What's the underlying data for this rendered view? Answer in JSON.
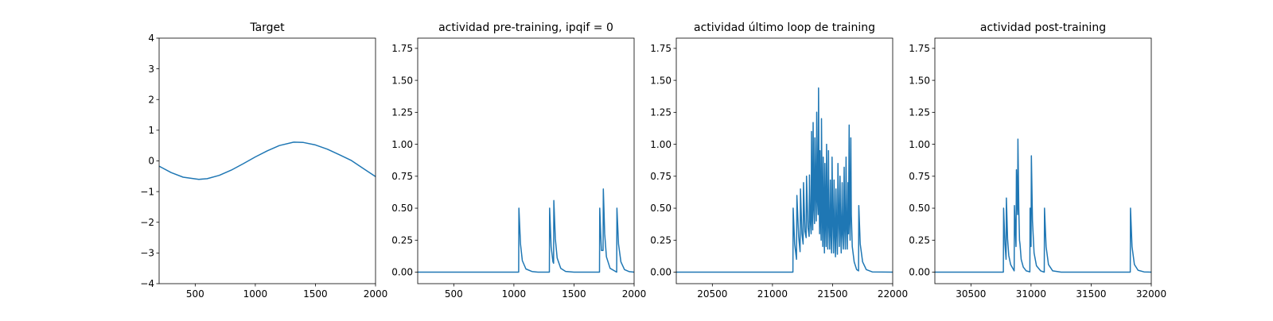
{
  "chart_data": [
    {
      "type": "line",
      "title": "Target",
      "xlabel": "",
      "ylabel": "",
      "xlim": [
        200,
        2000
      ],
      "ylim": [
        -4,
        4
      ],
      "xticks": [
        500,
        1000,
        1500,
        2000
      ],
      "xtick_labels": [
        "500",
        "1000",
        "1500",
        "2000"
      ],
      "yticks": [
        -4,
        -3,
        -2,
        -1,
        0,
        1,
        2,
        3,
        4
      ],
      "ytick_labels": [
        "−4",
        "−3",
        "−2",
        "−1",
        "0",
        "1",
        "2",
        "3",
        "4"
      ],
      "grid": false,
      "series": [
        {
          "color": "#1f77b4",
          "x": [
            200,
            300,
            400,
            530,
            600,
            700,
            800,
            900,
            1000,
            1100,
            1200,
            1320,
            1400,
            1500,
            1600,
            1700,
            1800,
            1900,
            2000
          ],
          "y": [
            -0.17,
            -0.38,
            -0.53,
            -0.6,
            -0.58,
            -0.47,
            -0.3,
            -0.09,
            0.13,
            0.33,
            0.5,
            0.61,
            0.6,
            0.52,
            0.38,
            0.2,
            0.01,
            -0.25,
            -0.51
          ]
        }
      ]
    },
    {
      "type": "line",
      "title": "actividad pre-training, ipqif = 0",
      "xlabel": "",
      "ylabel": "",
      "xlim": [
        200,
        2000
      ],
      "ylim": [
        -0.09,
        1.83
      ],
      "xticks": [
        500,
        1000,
        1500,
        2000
      ],
      "xtick_labels": [
        "500",
        "1000",
        "1500",
        "2000"
      ],
      "yticks": [
        0,
        0.25,
        0.5,
        0.75,
        1.0,
        1.25,
        1.5,
        1.75
      ],
      "ytick_labels": [
        "0.00",
        "0.25",
        "0.50",
        "0.75",
        "1.00",
        "1.25",
        "1.50",
        "1.75"
      ],
      "grid": false,
      "series": [
        {
          "color": "#1f77b4",
          "x": [
            200,
            1040,
            1042,
            1055,
            1070,
            1100,
            1150,
            1200,
            1295,
            1297,
            1310,
            1325,
            1330,
            1332,
            1345,
            1360,
            1390,
            1430,
            1500,
            1600,
            1712,
            1714,
            1722,
            1728,
            1742,
            1744,
            1755,
            1770,
            1800,
            1855,
            1857,
            1870,
            1890,
            1920,
            1960,
            2000
          ],
          "y": [
            0.0,
            0.0,
            0.5,
            0.22,
            0.09,
            0.025,
            0.005,
            0.0,
            0.0,
            0.5,
            0.2,
            0.08,
            0.07,
            0.56,
            0.26,
            0.11,
            0.03,
            0.006,
            0.0,
            0.0,
            0.0,
            0.5,
            0.3,
            0.17,
            0.17,
            0.65,
            0.3,
            0.12,
            0.03,
            0.0,
            0.5,
            0.22,
            0.08,
            0.02,
            0.004,
            0.0
          ]
        }
      ]
    },
    {
      "type": "line",
      "title": "actividad último loop de training",
      "xlabel": "",
      "ylabel": "",
      "xlim": [
        20200,
        22000
      ],
      "ylim": [
        -0.09,
        1.83
      ],
      "xticks": [
        20500,
        21000,
        21500,
        22000
      ],
      "xtick_labels": [
        "20500",
        "21000",
        "21500",
        "22000"
      ],
      "yticks": [
        0,
        0.25,
        0.5,
        0.75,
        1.0,
        1.25,
        1.5,
        1.75
      ],
      "ytick_labels": [
        "0.00",
        "0.25",
        "0.50",
        "0.75",
        "1.00",
        "1.25",
        "1.50",
        "1.75"
      ],
      "grid": false,
      "series": [
        {
          "color": "#1f77b4",
          "x": [
            20200,
            21170,
            21172,
            21185,
            21200,
            21203,
            21218,
            21230,
            21233,
            21245,
            21255,
            21258,
            21270,
            21280,
            21283,
            21295,
            21305,
            21308,
            21315,
            21322,
            21325,
            21330,
            21335,
            21338,
            21345,
            21350,
            21353,
            21360,
            21365,
            21368,
            21375,
            21380,
            21383,
            21388,
            21392,
            21395,
            21400,
            21405,
            21408,
            21413,
            21418,
            21422,
            21428,
            21432,
            21436,
            21442,
            21446,
            21450,
            21456,
            21460,
            21466,
            21470,
            21476,
            21482,
            21486,
            21492,
            21496,
            21502,
            21508,
            21512,
            21518,
            21524,
            21528,
            21535,
            21540,
            21545,
            21552,
            21556,
            21562,
            21568,
            21572,
            21580,
            21584,
            21590,
            21596,
            21600,
            21606,
            21612,
            21616,
            21622,
            21628,
            21632,
            21638,
            21642,
            21646,
            21652,
            21656,
            21664,
            21680,
            21700,
            21716,
            21718,
            21730,
            21750,
            21780,
            21830,
            22000
          ],
          "y": [
            0.0,
            0.0,
            0.5,
            0.22,
            0.1,
            0.6,
            0.28,
            0.16,
            0.65,
            0.3,
            0.22,
            0.7,
            0.32,
            0.27,
            0.75,
            0.35,
            0.28,
            0.76,
            0.4,
            0.3,
            1.1,
            0.45,
            0.33,
            1.17,
            0.5,
            0.38,
            1.05,
            0.6,
            0.4,
            1.25,
            0.55,
            0.45,
            1.44,
            0.7,
            0.3,
            0.95,
            0.45,
            0.25,
            1.2,
            0.55,
            0.2,
            0.9,
            0.4,
            0.15,
            0.85,
            0.38,
            0.2,
            1.0,
            0.42,
            0.18,
            0.95,
            0.4,
            0.18,
            0.72,
            0.32,
            0.15,
            0.9,
            0.4,
            0.15,
            0.72,
            0.3,
            0.12,
            0.65,
            0.3,
            0.14,
            0.85,
            0.35,
            0.2,
            0.75,
            0.3,
            0.15,
            0.7,
            0.3,
            0.18,
            0.82,
            0.35,
            0.18,
            0.9,
            0.38,
            0.18,
            0.7,
            0.3,
            1.15,
            0.4,
            0.25,
            1.05,
            0.45,
            0.2,
            0.08,
            0.02,
            0.01,
            0.52,
            0.22,
            0.08,
            0.02,
            0.002,
            0.0
          ]
        }
      ]
    },
    {
      "type": "line",
      "title": "actividad post-training",
      "xlabel": "",
      "ylabel": "",
      "xlim": [
        30200,
        32000
      ],
      "ylim": [
        -0.09,
        1.83
      ],
      "xticks": [
        30500,
        31000,
        31500,
        32000
      ],
      "xtick_labels": [
        "30500",
        "31000",
        "31500",
        "32000"
      ],
      "yticks": [
        0,
        0.25,
        0.5,
        0.75,
        1.0,
        1.25,
        1.5,
        1.75
      ],
      "ytick_labels": [
        "0.00",
        "0.25",
        "0.50",
        "0.75",
        "1.00",
        "1.25",
        "1.50",
        "1.75"
      ],
      "grid": false,
      "series": [
        {
          "color": "#1f77b4",
          "x": [
            30200,
            30770,
            30772,
            30783,
            30792,
            30795,
            30805,
            30815,
            30830,
            30860,
            30860,
            30862,
            30870,
            30875,
            30878,
            30884,
            30888,
            30891,
            30898,
            30904,
            30908,
            30918,
            30935,
            30960,
            30990,
            30992,
            30996,
            31000,
            31003,
            31012,
            31025,
            31045,
            31080,
            31110,
            31112,
            31125,
            31145,
            31180,
            31250,
            31825,
            31827,
            31840,
            31860,
            31890,
            31940,
            32000
          ],
          "y": [
            0.0,
            0.0,
            0.5,
            0.22,
            0.1,
            0.58,
            0.26,
            0.13,
            0.06,
            0.01,
            0.01,
            0.52,
            0.32,
            0.2,
            0.8,
            0.56,
            0.45,
            1.04,
            0.5,
            0.25,
            0.22,
            0.1,
            0.04,
            0.01,
            0.002,
            0.5,
            0.3,
            0.2,
            0.91,
            0.4,
            0.15,
            0.05,
            0.01,
            0.0,
            0.5,
            0.2,
            0.06,
            0.01,
            0.0,
            0.0,
            0.5,
            0.2,
            0.06,
            0.015,
            0.002,
            0.0
          ]
        }
      ]
    }
  ]
}
